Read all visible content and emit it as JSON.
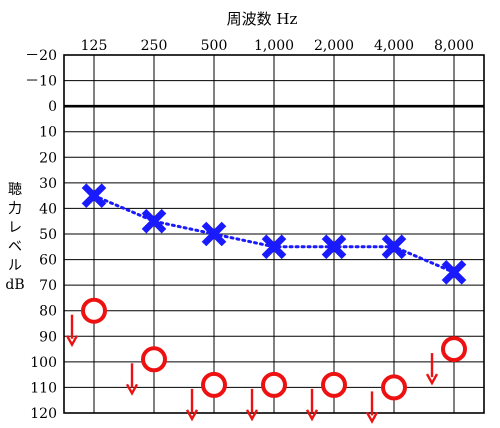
{
  "chart_data": {
    "type": "line",
    "title": "周波数 Hz",
    "ylabel_lines": [
      "聴",
      "力",
      "レ",
      "ベ",
      "ル",
      "dB"
    ],
    "x_categories": [
      "125",
      "250",
      "500",
      "1,000",
      "2,000",
      "4,000",
      "8,000"
    ],
    "y_ticks": [
      "－20",
      "－10",
      "0",
      "10",
      "20",
      "30",
      "40",
      "50",
      "60",
      "70",
      "80",
      "90",
      "100",
      "110",
      "120"
    ],
    "ylim": [
      -20,
      120
    ],
    "y_inverted": true,
    "reference_line_y": 0,
    "grid": true,
    "series": [
      {
        "marker": "cross",
        "color": "#1a1aff",
        "connected": true,
        "line_style": "dotted",
        "values": [
          35,
          45,
          50,
          55,
          55,
          55,
          65
        ]
      },
      {
        "marker": "circle-with-down-arrow",
        "color": "#ee1111",
        "connected": false,
        "values": [
          80,
          99,
          109,
          109,
          109,
          110,
          95
        ]
      }
    ]
  }
}
